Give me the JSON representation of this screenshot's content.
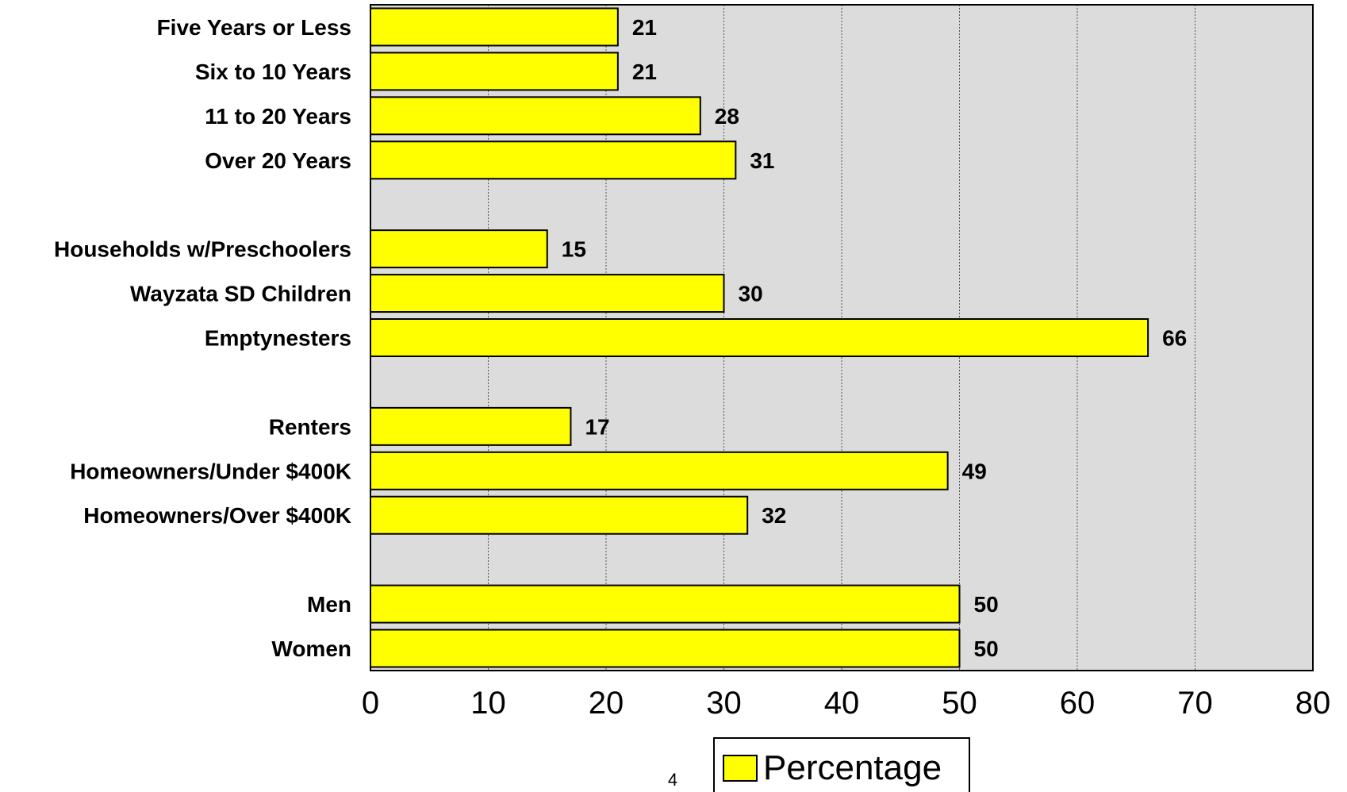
{
  "chart_data": {
    "type": "bar",
    "orientation": "horizontal",
    "categories": [
      "Five Years or Less",
      "Six to 10 Years",
      "11 to 20 Years",
      "Over 20 Years",
      "",
      "Households w/Preschoolers",
      "Wayzata SD Children",
      "Emptynesters",
      "",
      "Renters",
      "Homeowners/Under $400K",
      "Homeowners/Over $400K",
      "",
      "Men",
      "Women"
    ],
    "series": [
      {
        "name": "Percentage",
        "values": [
          21,
          21,
          28,
          31,
          null,
          15,
          30,
          66,
          null,
          17,
          49,
          32,
          null,
          50,
          50
        ]
      }
    ],
    "xlim": [
      0,
      80
    ],
    "xticks": [
      "0",
      "10",
      "20",
      "30",
      "40",
      "50",
      "60",
      "70",
      "80"
    ],
    "grid": "vertical dotted",
    "legend": "bottom",
    "colors": {
      "bar": "#ffff00",
      "plot_bg": "#dcdcdc",
      "border": "#000000"
    }
  },
  "page_number": "4"
}
